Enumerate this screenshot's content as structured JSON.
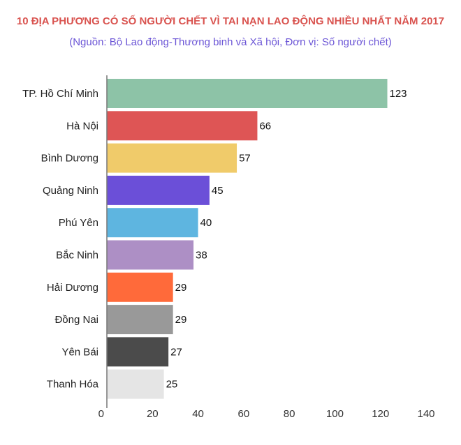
{
  "chart_data": {
    "type": "bar",
    "orientation": "horizontal",
    "title": "10 ĐỊA PHƯƠNG CÓ SỐ NGƯỜI CHẾT VÌ TAI NẠN LAO ĐỘNG NHIỀU NHẤT NĂM 2017",
    "subtitle": "(Nguồn: Bộ Lao động-Thương binh và Xã hội, Đơn vị: Số người chết)",
    "categories": [
      "TP. Hồ Chí Minh",
      "Hà Nội",
      "Bình Dương",
      "Quảng Ninh",
      "Phú Yên",
      "Bắc Ninh",
      "Hải Dương",
      "Đồng Nai",
      "Yên Bái",
      "Thanh Hóa"
    ],
    "values": [
      123,
      66,
      57,
      45,
      40,
      38,
      29,
      29,
      27,
      25
    ],
    "colors": [
      "#8dc3a7",
      "#de5555",
      "#f0cb6a",
      "#6b4fd8",
      "#5eb5e0",
      "#ad8fc5",
      "#ff6a3a",
      "#999999",
      "#4b4b4b",
      "#e5e5e5"
    ],
    "xlim": [
      0,
      140
    ],
    "xticks": [
      0,
      20,
      40,
      60,
      80,
      100,
      120,
      140
    ],
    "grid": false,
    "legend": false
  }
}
